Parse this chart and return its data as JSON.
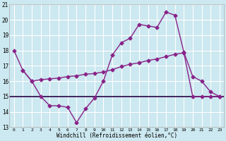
{
  "xlabel": "Windchill (Refroidissement éolien,°C)",
  "temp_line_x": [
    0,
    1,
    2,
    3,
    4,
    5,
    6,
    7,
    8,
    9,
    10,
    11,
    12,
    13,
    14,
    15,
    16,
    17,
    18,
    19,
    20,
    21,
    22,
    23
  ],
  "temp_line_y": [
    18.0,
    16.7,
    16.0,
    15.0,
    14.4,
    14.4,
    14.3,
    13.3,
    14.2,
    14.9,
    16.0,
    17.7,
    18.5,
    18.8,
    19.7,
    19.6,
    19.5,
    20.5,
    20.3,
    17.9,
    16.3,
    16.0,
    15.3,
    15.0
  ],
  "diag_line_x": [
    1,
    2,
    3,
    4,
    5,
    6,
    7,
    8,
    9,
    10,
    11,
    12,
    13,
    14,
    15,
    16,
    17,
    18,
    19,
    20,
    21,
    22,
    23
  ],
  "diag_line_y": [
    16.7,
    16.0,
    16.1,
    16.15,
    16.2,
    16.3,
    16.35,
    16.45,
    16.5,
    16.6,
    16.75,
    16.95,
    17.1,
    17.2,
    17.35,
    17.45,
    17.6,
    17.75,
    17.85,
    15.0,
    15.0,
    15.0,
    15.0
  ],
  "flat_line_y": 15.0,
  "line_color": "#882288",
  "flat_color": "#220044",
  "bg_color": "#cce8f0",
  "grid_color": "#ffffff",
  "ylim_min": 13,
  "ylim_max": 21,
  "yticks": [
    13,
    14,
    15,
    16,
    17,
    18,
    19,
    20,
    21
  ],
  "xticks": [
    0,
    1,
    2,
    3,
    4,
    5,
    6,
    7,
    8,
    9,
    10,
    11,
    12,
    13,
    14,
    15,
    16,
    17,
    18,
    19,
    20,
    21,
    22,
    23
  ],
  "marker": "D",
  "markersize": 2.5,
  "linewidth": 1.0
}
